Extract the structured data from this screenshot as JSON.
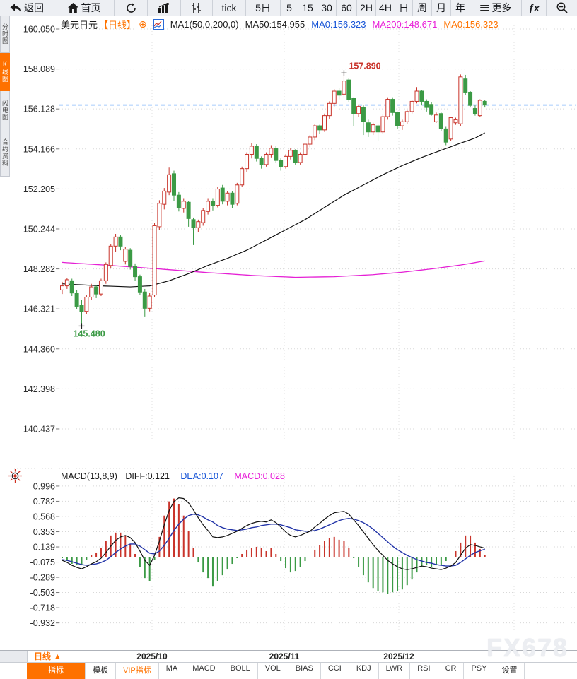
{
  "toolbar": {
    "back": "返回",
    "home": "首页",
    "buttons": [
      "tick",
      "5日",
      "5",
      "15",
      "30",
      "60",
      "2H",
      "4H",
      "日",
      "周",
      "月",
      "年"
    ],
    "more": "更多",
    "fx": "ƒx"
  },
  "sidebar": {
    "tabs": [
      {
        "label": "分时图",
        "active": false
      },
      {
        "label": "K线图",
        "active": true
      },
      {
        "label": "闪电图",
        "active": false
      },
      {
        "label": "合约资料",
        "active": false
      }
    ]
  },
  "header": {
    "symbol": "美元日元",
    "period": "【日线】",
    "add_icon": "⊕",
    "ma_group": "MA1(50,0,200,0)",
    "ma50": "MA50:154.955",
    "ma0_blue": "MA0:156.323",
    "ma200": "MA200:148.671",
    "ma0_orange": "MA0:156.323"
  },
  "macd_header": {
    "title": "MACD(13,8,9)",
    "diff": "DIFF:0.121",
    "dea": "DEA:0.107",
    "macd": "MACD:0.028"
  },
  "bottom": {
    "period": "日线 ▲",
    "tabs": [
      {
        "label": "指标",
        "style": "active"
      },
      {
        "label": "模板",
        "style": ""
      },
      {
        "label": "VIP指标",
        "style": "vip"
      },
      {
        "label": "MA",
        "style": ""
      },
      {
        "label": "MACD",
        "style": ""
      },
      {
        "label": "BOLL",
        "style": ""
      },
      {
        "label": "VOL",
        "style": ""
      },
      {
        "label": "BIAS",
        "style": ""
      },
      {
        "label": "CCI",
        "style": ""
      },
      {
        "label": "KDJ",
        "style": ""
      },
      {
        "label": "LWR",
        "style": ""
      },
      {
        "label": "RSI",
        "style": ""
      },
      {
        "label": "CR",
        "style": ""
      },
      {
        "label": "PSY",
        "style": ""
      },
      {
        "label": "设置",
        "style": ""
      }
    ]
  },
  "watermark": "FX678",
  "chart_data": {
    "type": "candlestick+macd",
    "title": "美元日元 日线",
    "price_axis": [
      160.05,
      158.089,
      156.128,
      154.166,
      152.205,
      150.244,
      148.282,
      146.321,
      144.36,
      142.398,
      140.437
    ],
    "macd_axis": [
      0.996,
      0.782,
      0.568,
      0.353,
      0.139,
      -0.075,
      -0.289,
      -0.503,
      -0.718,
      -0.932
    ],
    "x_labels": [
      "2025/10",
      "2025/11",
      "2025/12"
    ],
    "x_label_positions": [
      215,
      402,
      564
    ],
    "vgrid_positions": [
      215,
      402,
      564,
      727
    ],
    "current_price": 156.323,
    "high_annotation": {
      "index": 58,
      "price": 157.89,
      "label": "157.890"
    },
    "low_annotation": {
      "index": 4,
      "price": 145.48,
      "label": "145.480"
    },
    "colors": {
      "up": "#c9342b",
      "down": "#3b9a45",
      "ma50": "#101010",
      "ma200": "#e520d5",
      "diff": "#101010",
      "dea": "#2234a8",
      "current": "#1e7ef7"
    },
    "candles": [
      [
        147.25,
        147.65,
        147.05,
        147.45
      ],
      [
        147.45,
        147.85,
        147.3,
        147.75
      ],
      [
        147.7,
        147.8,
        146.95,
        147.1
      ],
      [
        147.1,
        147.25,
        146.3,
        146.45
      ],
      [
        146.5,
        146.75,
        145.48,
        146.2
      ],
      [
        146.2,
        147.0,
        146.05,
        146.9
      ],
      [
        146.9,
        147.55,
        146.75,
        147.4
      ],
      [
        147.4,
        147.5,
        146.85,
        147.05
      ],
      [
        147.05,
        147.8,
        146.95,
        147.7
      ],
      [
        147.7,
        148.6,
        147.55,
        148.5
      ],
      [
        148.45,
        149.5,
        148.3,
        149.4
      ],
      [
        149.4,
        150.0,
        149.1,
        149.85
      ],
      [
        149.85,
        149.95,
        149.2,
        149.4
      ],
      [
        148.65,
        149.35,
        148.5,
        149.25
      ],
      [
        149.2,
        149.3,
        148.25,
        148.4
      ],
      [
        148.4,
        148.55,
        147.7,
        147.9
      ],
      [
        147.9,
        148.0,
        147.0,
        147.15
      ],
      [
        147.15,
        147.3,
        145.95,
        146.35
      ],
      [
        146.35,
        147.1,
        146.2,
        146.95
      ],
      [
        147.0,
        150.55,
        146.9,
        150.4
      ],
      [
        150.35,
        151.65,
        150.2,
        151.5
      ],
      [
        151.45,
        152.25,
        151.2,
        152.1
      ],
      [
        152.05,
        153.25,
        151.9,
        152.9
      ],
      [
        152.95,
        153.1,
        151.6,
        151.9
      ],
      [
        151.9,
        152.05,
        151.1,
        151.3
      ],
      [
        151.25,
        151.75,
        151.05,
        151.6
      ],
      [
        151.55,
        151.6,
        150.35,
        150.75
      ],
      [
        150.7,
        150.8,
        149.45,
        150.3
      ],
      [
        150.3,
        150.7,
        150.1,
        150.6
      ],
      [
        150.55,
        151.25,
        150.4,
        151.15
      ],
      [
        151.1,
        151.75,
        150.95,
        151.6
      ],
      [
        151.6,
        151.75,
        151.15,
        151.4
      ],
      [
        151.4,
        152.3,
        151.3,
        152.2
      ],
      [
        152.25,
        152.4,
        151.45,
        151.6
      ],
      [
        151.6,
        152.1,
        151.4,
        152.0
      ],
      [
        152.0,
        152.1,
        151.25,
        151.45
      ],
      [
        151.5,
        152.5,
        151.4,
        152.4
      ],
      [
        152.4,
        153.3,
        152.3,
        153.2
      ],
      [
        153.2,
        154.0,
        153.05,
        153.9
      ],
      [
        153.9,
        154.45,
        153.7,
        154.3
      ],
      [
        154.3,
        154.4,
        153.55,
        153.7
      ],
      [
        153.7,
        153.8,
        153.2,
        153.4
      ],
      [
        153.4,
        154.0,
        153.3,
        153.9
      ],
      [
        153.9,
        154.35,
        153.75,
        154.2
      ],
      [
        154.2,
        154.3,
        153.5,
        153.6
      ],
      [
        153.6,
        153.7,
        153.1,
        153.3
      ],
      [
        153.3,
        153.9,
        153.2,
        153.8
      ],
      [
        153.8,
        154.2,
        153.65,
        154.1
      ],
      [
        154.1,
        154.15,
        153.4,
        153.5
      ],
      [
        153.5,
        154.0,
        153.4,
        153.9
      ],
      [
        153.9,
        154.5,
        153.8,
        154.4
      ],
      [
        154.4,
        154.85,
        154.25,
        154.75
      ],
      [
        154.75,
        155.4,
        154.6,
        155.3
      ],
      [
        155.3,
        155.35,
        154.9,
        155.1
      ],
      [
        155.1,
        155.9,
        155.0,
        155.8
      ],
      [
        155.8,
        156.5,
        155.65,
        156.4
      ],
      [
        156.4,
        157.1,
        156.25,
        157.0
      ],
      [
        157.0,
        157.15,
        156.6,
        156.8
      ],
      [
        156.85,
        157.89,
        156.7,
        157.5
      ],
      [
        157.55,
        157.65,
        156.45,
        156.6
      ],
      [
        156.65,
        156.7,
        155.3,
        155.9
      ],
      [
        155.9,
        156.35,
        155.75,
        156.25
      ],
      [
        156.2,
        156.3,
        154.85,
        155.5
      ],
      [
        155.45,
        155.6,
        154.75,
        155.0
      ],
      [
        155.0,
        155.45,
        154.85,
        155.35
      ],
      [
        155.3,
        155.4,
        154.55,
        155.0
      ],
      [
        155.0,
        155.85,
        154.9,
        155.75
      ],
      [
        155.75,
        156.7,
        155.6,
        156.6
      ],
      [
        156.6,
        156.7,
        155.8,
        155.95
      ],
      [
        155.95,
        156.0,
        155.15,
        155.3
      ],
      [
        155.3,
        155.6,
        155.1,
        155.5
      ],
      [
        155.5,
        156.1,
        155.4,
        156.0
      ],
      [
        156.0,
        156.55,
        155.9,
        156.5
      ],
      [
        156.5,
        157.2,
        156.4,
        157.0
      ],
      [
        157.0,
        157.05,
        156.3,
        156.5
      ],
      [
        156.5,
        156.6,
        156.0,
        156.2
      ],
      [
        156.35,
        156.45,
        155.8,
        155.85
      ],
      [
        155.5,
        155.95,
        155.45,
        155.83
      ],
      [
        155.9,
        155.95,
        155.05,
        155.15
      ],
      [
        155.15,
        155.25,
        154.35,
        154.5
      ],
      [
        154.65,
        155.75,
        154.55,
        155.7
      ],
      [
        155.45,
        155.7,
        155.35,
        155.6
      ],
      [
        155.4,
        157.82,
        155.3,
        157.7
      ],
      [
        157.6,
        157.8,
        156.8,
        156.95
      ],
      [
        156.95,
        157.0,
        156.2,
        156.3
      ],
      [
        156.15,
        156.3,
        155.8,
        155.9
      ],
      [
        155.8,
        156.6,
        155.75,
        156.55
      ],
      [
        156.5,
        156.55,
        156.2,
        156.32
      ]
    ],
    "ma50_anchors": [
      [
        0,
        147.55
      ],
      [
        8,
        147.45
      ],
      [
        14,
        147.4
      ],
      [
        18,
        147.45
      ],
      [
        22,
        147.7
      ],
      [
        26,
        148.05
      ],
      [
        30,
        148.45
      ],
      [
        34,
        148.8
      ],
      [
        38,
        149.2
      ],
      [
        42,
        149.7
      ],
      [
        46,
        150.2
      ],
      [
        50,
        150.7
      ],
      [
        54,
        151.3
      ],
      [
        58,
        151.9
      ],
      [
        62,
        152.4
      ],
      [
        66,
        152.9
      ],
      [
        70,
        153.35
      ],
      [
        74,
        153.75
      ],
      [
        78,
        154.1
      ],
      [
        82,
        154.45
      ],
      [
        85,
        154.7
      ],
      [
        87,
        154.955
      ]
    ],
    "ma200_anchors": [
      [
        0,
        148.6
      ],
      [
        10,
        148.45
      ],
      [
        20,
        148.28
      ],
      [
        30,
        148.1
      ],
      [
        40,
        147.95
      ],
      [
        48,
        147.87
      ],
      [
        56,
        147.9
      ],
      [
        64,
        148.0
      ],
      [
        70,
        148.12
      ],
      [
        76,
        148.28
      ],
      [
        82,
        148.47
      ],
      [
        87,
        148.671
      ]
    ],
    "macd": {
      "diff": [
        -0.05,
        -0.08,
        -0.12,
        -0.15,
        -0.17,
        -0.14,
        -0.1,
        -0.07,
        -0.02,
        0.06,
        0.15,
        0.23,
        0.28,
        0.3,
        0.27,
        0.2,
        0.08,
        -0.05,
        -0.12,
        0.02,
        0.22,
        0.45,
        0.65,
        0.78,
        0.83,
        0.82,
        0.76,
        0.66,
        0.55,
        0.45,
        0.37,
        0.28,
        0.27,
        0.28,
        0.3,
        0.33,
        0.36,
        0.4,
        0.44,
        0.47,
        0.49,
        0.5,
        0.49,
        0.52,
        0.48,
        0.42,
        0.35,
        0.3,
        0.28,
        0.3,
        0.33,
        0.36,
        0.42,
        0.47,
        0.53,
        0.58,
        0.62,
        0.63,
        0.64,
        0.6,
        0.52,
        0.44,
        0.35,
        0.26,
        0.17,
        0.09,
        0.02,
        -0.05,
        -0.1,
        -0.14,
        -0.17,
        -0.18,
        -0.17,
        -0.15,
        -0.13,
        -0.14,
        -0.16,
        -0.17,
        -0.18,
        -0.16,
        -0.13,
        -0.08,
        0.02,
        0.12,
        0.17,
        0.16,
        0.14,
        0.121
      ],
      "dea": [
        -0.04,
        -0.05,
        -0.07,
        -0.09,
        -0.11,
        -0.12,
        -0.11,
        -0.1,
        -0.08,
        -0.05,
        0.0,
        0.06,
        0.11,
        0.15,
        0.18,
        0.18,
        0.15,
        0.1,
        0.05,
        0.04,
        0.08,
        0.16,
        0.26,
        0.37,
        0.46,
        0.53,
        0.58,
        0.6,
        0.59,
        0.56,
        0.52,
        0.49,
        0.44,
        0.41,
        0.39,
        0.38,
        0.37,
        0.38,
        0.39,
        0.41,
        0.42,
        0.44,
        0.45,
        0.46,
        0.46,
        0.45,
        0.43,
        0.41,
        0.38,
        0.37,
        0.36,
        0.36,
        0.37,
        0.39,
        0.42,
        0.45,
        0.48,
        0.51,
        0.53,
        0.54,
        0.53,
        0.51,
        0.48,
        0.44,
        0.39,
        0.33,
        0.27,
        0.21,
        0.15,
        0.1,
        0.06,
        0.02,
        -0.01,
        -0.04,
        -0.06,
        -0.08,
        -0.09,
        -0.11,
        -0.12,
        -0.13,
        -0.13,
        -0.12,
        -0.08,
        -0.03,
        0.02,
        0.06,
        0.085,
        0.107
      ]
    }
  }
}
